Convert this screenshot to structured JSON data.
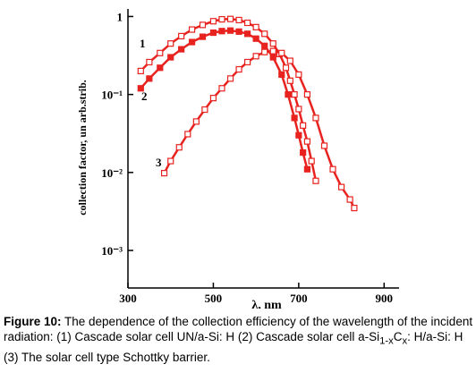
{
  "chart_data": {
    "type": "line",
    "y_scale": "log",
    "x_label": "λ,  nm",
    "y_label": "collection factor,  un arb.strib.",
    "xlim": [
      300,
      935
    ],
    "xticks": [
      300,
      500,
      700,
      900
    ],
    "ylim": [
      0.00033,
      1.25
    ],
    "yticks": [
      {
        "value": 1,
        "label": "1"
      },
      {
        "value": 0.1,
        "label": "10⁻¹"
      },
      {
        "value": 0.01,
        "label": "10⁻²"
      },
      {
        "value": 0.001,
        "label": "10⁻³"
      }
    ],
    "annotations": [
      "1",
      "2",
      "3"
    ],
    "series": [
      {
        "name": "1",
        "color": "#e8221e",
        "marker": "open",
        "x": [
          330,
          350,
          375,
          400,
          425,
          450,
          475,
          500,
          520,
          540,
          560,
          580,
          600,
          620,
          640,
          655,
          670,
          680,
          690,
          700,
          710,
          720,
          730,
          740
        ],
        "values": [
          0.2,
          0.26,
          0.34,
          0.45,
          0.56,
          0.68,
          0.78,
          0.87,
          0.92,
          0.93,
          0.9,
          0.83,
          0.73,
          0.6,
          0.45,
          0.33,
          0.22,
          0.15,
          0.1,
          0.065,
          0.04,
          0.025,
          0.014,
          0.0078
        ]
      },
      {
        "name": "2",
        "color": "#e8221e",
        "marker": "filled",
        "x": [
          330,
          350,
          375,
          400,
          425,
          450,
          475,
          500,
          520,
          540,
          560,
          580,
          600,
          620,
          640,
          660,
          675,
          690,
          700,
          710,
          720
        ],
        "values": [
          0.12,
          0.16,
          0.22,
          0.3,
          0.38,
          0.47,
          0.55,
          0.62,
          0.65,
          0.66,
          0.64,
          0.6,
          0.52,
          0.42,
          0.3,
          0.18,
          0.1,
          0.05,
          0.03,
          0.018,
          0.011
        ]
      },
      {
        "name": "3",
        "color": "#e8221e",
        "marker": "open",
        "x": [
          385,
          400,
          420,
          440,
          460,
          480,
          500,
          520,
          540,
          560,
          580,
          600,
          620,
          640,
          660,
          680,
          700,
          720,
          740,
          760,
          780,
          800,
          820,
          830
        ],
        "values": [
          0.0098,
          0.014,
          0.021,
          0.031,
          0.045,
          0.064,
          0.09,
          0.12,
          0.16,
          0.21,
          0.26,
          0.31,
          0.35,
          0.36,
          0.34,
          0.27,
          0.18,
          0.1,
          0.05,
          0.022,
          0.011,
          0.0065,
          0.0045,
          0.0035
        ]
      }
    ]
  },
  "caption": {
    "label": "Figure 10:",
    "parts": [
      " The dependence of the collection efficiency of the wavelength of the incident radiation: (1) Cascade solar cell UN/a-Si: H (2) Cascade solar cell a-Si",
      "1-x",
      "C",
      "x",
      ": H/a-Si: H (3) The solar cell type Schottky barrier."
    ]
  }
}
